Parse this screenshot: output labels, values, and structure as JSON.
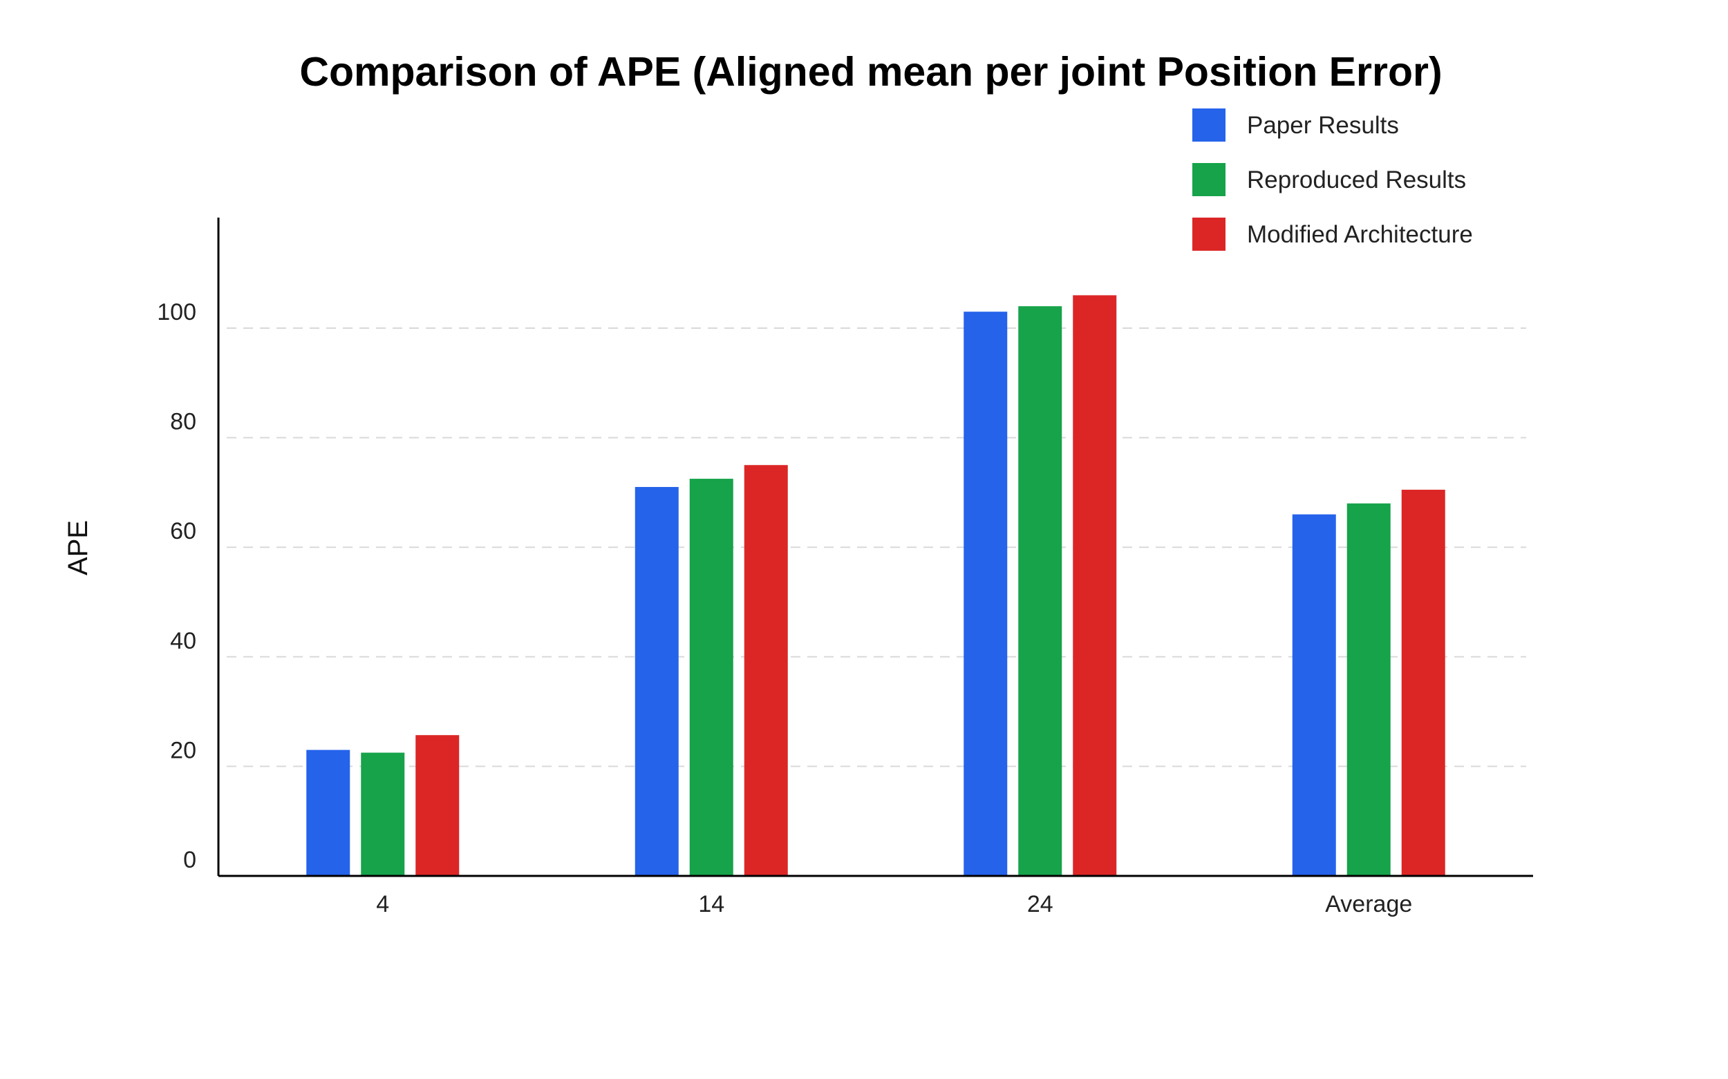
{
  "chart_data": {
    "type": "bar",
    "title": "Comparison of APE (Aligned mean per joint Position Error)",
    "xlabel": "",
    "ylabel": "APE",
    "categories": [
      "4",
      "14",
      "24",
      "Average"
    ],
    "series": [
      {
        "name": "Paper Results",
        "color": "#2563EB",
        "values": [
          23.0,
          71.0,
          103.0,
          66.0
        ]
      },
      {
        "name": "Reproduced Results",
        "color": "#16A34A",
        "values": [
          22.5,
          72.5,
          104.0,
          68.0
        ]
      },
      {
        "name": "Modified Architecture",
        "color": "#DC2626",
        "values": [
          25.7,
          75.0,
          106.0,
          70.5
        ]
      }
    ],
    "ylim": [
      0,
      120
    ],
    "yticks": [
      0,
      20,
      40,
      60,
      80,
      100
    ],
    "grid": true,
    "legend_position": "top-right"
  }
}
